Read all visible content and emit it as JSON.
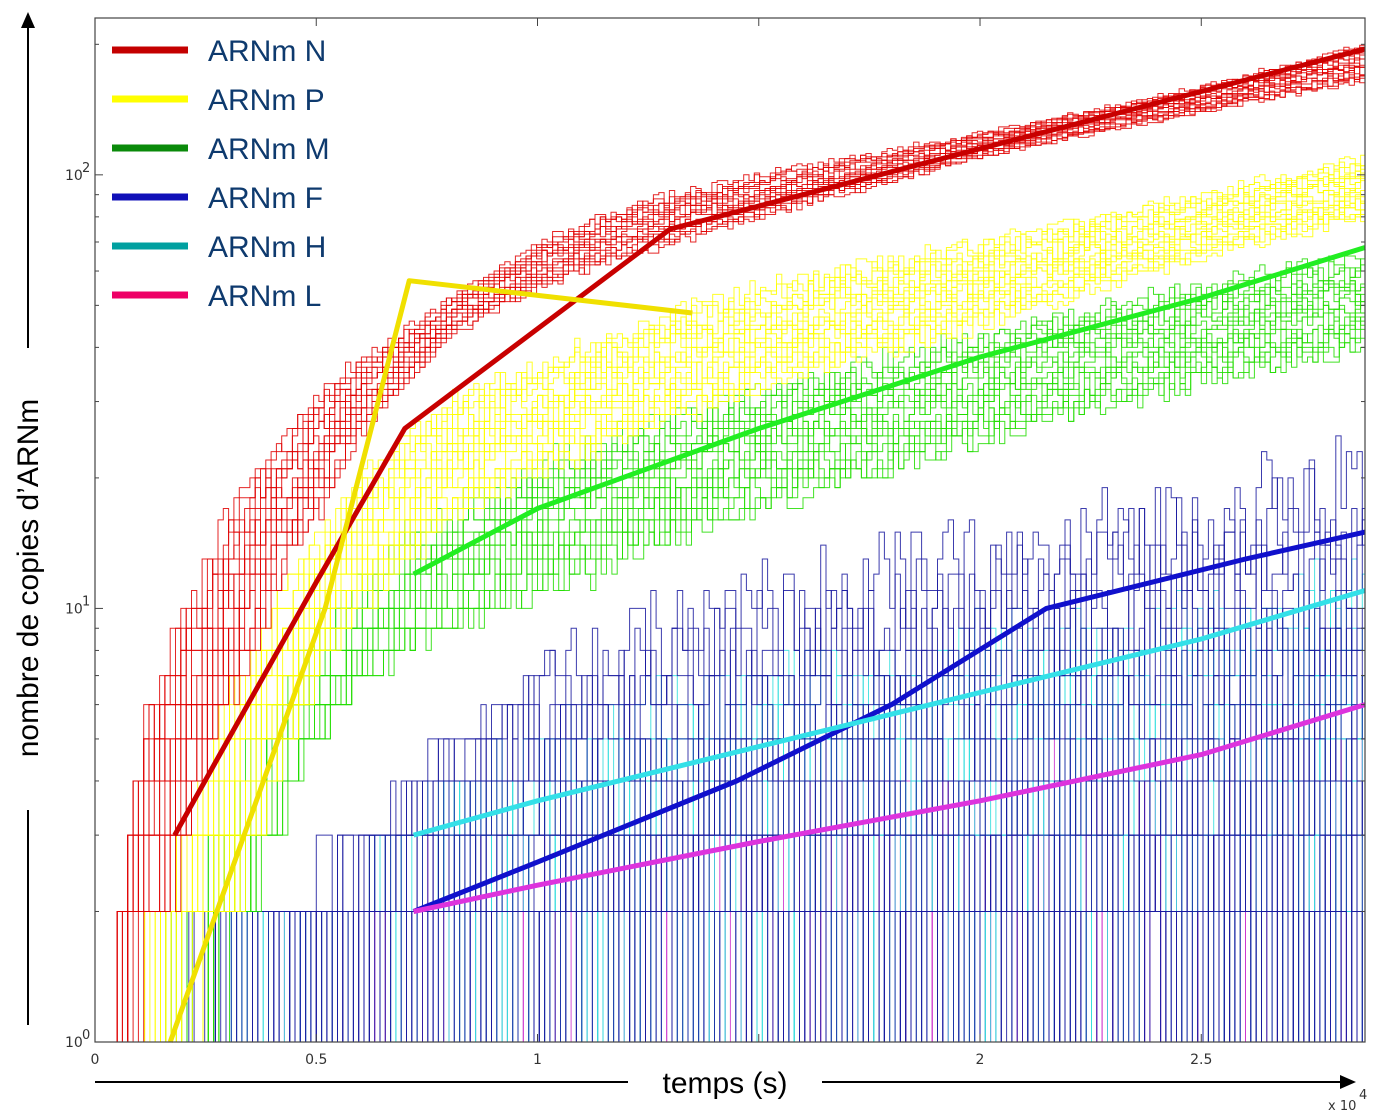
{
  "chart_data": {
    "type": "line",
    "xlabel": "temps (s)",
    "ylabel": "nombre de copies d’ARNm",
    "x_multiplier_label": "x 10",
    "x_multiplier_exp": "4",
    "xlim": [
      0,
      2.87
    ],
    "ylim": [
      1,
      230
    ],
    "yscale": "log",
    "grid": false,
    "legend_position": "top-left",
    "x_ticks": [
      {
        "value": 0,
        "label": "0"
      },
      {
        "value": 0.5,
        "label": "0.5"
      },
      {
        "value": 1,
        "label": "1"
      },
      {
        "value": 1.5,
        "label": ""
      },
      {
        "value": 2,
        "label": "2"
      },
      {
        "value": 2.5,
        "label": "2.5"
      }
    ],
    "y_ticks": [
      {
        "value": 1,
        "base": "10",
        "exp": "0"
      },
      {
        "value": 10,
        "base": "10",
        "exp": "1"
      },
      {
        "value": 100,
        "base": "10",
        "exp": "2"
      }
    ],
    "series": [
      {
        "name": "ARNm N",
        "color": "#e00000",
        "mean_color": "#c80000",
        "legend_color": "#c40000",
        "envelope": {
          "x": [
            0.05,
            0.1,
            0.2,
            0.3,
            0.4,
            0.5,
            0.6,
            0.7,
            0.8,
            1.0,
            1.2,
            1.5,
            2.0,
            2.5,
            2.87
          ],
          "lo": [
            1,
            1.5,
            3,
            6,
            11,
            17,
            26,
            33,
            43,
            55,
            65,
            80,
            110,
            140,
            165
          ],
          "hi": [
            2,
            5,
            10,
            16,
            24,
            32,
            38,
            44,
            52,
            70,
            85,
            100,
            125,
            160,
            200
          ]
        },
        "mean": {
          "x": [
            0.18,
            0.5,
            0.7,
            1.3,
            2.87
          ],
          "y": [
            3,
            11.5,
            26,
            75,
            195
          ]
        }
      },
      {
        "name": "ARNm P",
        "color": "#ffff00",
        "mean_color": "#f0e000",
        "legend_color": "#ffff00",
        "envelope": {
          "x": [
            0.1,
            0.2,
            0.3,
            0.4,
            0.5,
            0.6,
            0.7,
            0.8,
            1.0,
            1.3,
            1.6,
            2.0,
            2.5,
            2.87
          ],
          "lo": [
            1,
            1.2,
            2,
            4,
            7,
            10,
            13,
            16,
            21,
            27,
            35,
            45,
            65,
            80
          ],
          "hi": [
            1.5,
            3,
            6,
            10,
            15,
            20,
            25,
            30,
            37,
            48,
            58,
            70,
            90,
            110
          ]
        },
        "mean": {
          "x": [
            0.17,
            0.52,
            0.71,
            1.35
          ],
          "y": [
            1,
            10,
            57,
            48
          ]
        }
      },
      {
        "name": "ARNm M",
        "color": "#22dd00",
        "mean_color": "#22ee22",
        "legend_color": "#0a8a0a",
        "envelope": {
          "x": [
            0.1,
            0.2,
            0.3,
            0.4,
            0.5,
            0.6,
            0.7,
            0.9,
            1.1,
            1.4,
            1.8,
            2.2,
            2.6,
            2.87
          ],
          "lo": [
            1,
            1,
            1.5,
            3,
            5,
            7,
            8,
            10,
            12,
            16,
            21,
            28,
            35,
            40
          ],
          "hi": [
            1.2,
            2,
            4,
            6,
            9,
            12,
            15,
            19,
            24,
            30,
            38,
            48,
            58,
            65
          ]
        },
        "mean": {
          "x": [
            0.72,
            1.0,
            1.5,
            2.0,
            2.5,
            2.87
          ],
          "y": [
            12,
            17,
            26,
            38,
            52,
            68
          ]
        }
      },
      {
        "name": "ARNm F",
        "color": "#1a1aa0",
        "mean_color": "#1010cc",
        "legend_color": "#1010b8",
        "envelope": {
          "x": [
            0.2,
            0.4,
            0.6,
            0.8,
            1.0,
            1.3,
            1.6,
            2.0,
            2.4,
            2.87
          ],
          "lo": [
            1,
            1,
            1,
            1,
            1,
            1,
            1,
            1,
            1,
            1
          ],
          "hi": [
            1.5,
            2,
            3,
            5,
            7,
            9,
            11,
            13,
            16,
            20
          ]
        },
        "mean": {
          "x": [
            0.72,
            1.0,
            1.45,
            1.8,
            2.15,
            2.6,
            2.87
          ],
          "y": [
            2,
            2.6,
            4,
            6,
            10,
            13,
            15
          ]
        }
      },
      {
        "name": "ARNm H",
        "color": "#33dddd",
        "mean_color": "#33e0e8",
        "legend_color": "#00a0a0",
        "envelope": {
          "x": [
            0.2,
            0.4,
            0.6,
            0.8,
            1.0,
            1.3,
            1.6,
            2.0,
            2.4,
            2.87
          ],
          "lo": [
            1,
            1,
            1,
            1,
            1,
            1,
            1,
            1,
            1,
            1
          ],
          "hi": [
            1.3,
            1.8,
            2.5,
            4,
            5,
            6,
            7,
            8,
            9,
            11
          ]
        },
        "mean": {
          "x": [
            0.72,
            1.0,
            1.5,
            2.0,
            2.5,
            2.87
          ],
          "y": [
            3,
            3.6,
            4.8,
            6.4,
            8.5,
            11
          ]
        }
      },
      {
        "name": "ARNm L",
        "color": "#cc33cc",
        "mean_color": "#dd33dd",
        "legend_color": "#ee0066",
        "envelope": {
          "x": [
            0.2,
            0.4,
            0.6,
            0.8,
            1.0,
            1.3,
            1.6,
            2.0,
            2.4,
            2.87
          ],
          "lo": [
            1,
            1,
            1,
            1,
            1,
            1,
            1,
            1,
            1,
            1
          ],
          "hi": [
            1.2,
            1.5,
            2,
            2.5,
            3,
            3,
            3.5,
            4,
            4.5,
            5
          ]
        },
        "mean": {
          "x": [
            0.72,
            1.0,
            1.5,
            2.0,
            2.5,
            2.87
          ],
          "y": [
            2,
            2.3,
            2.9,
            3.6,
            4.6,
            6
          ]
        }
      }
    ]
  }
}
